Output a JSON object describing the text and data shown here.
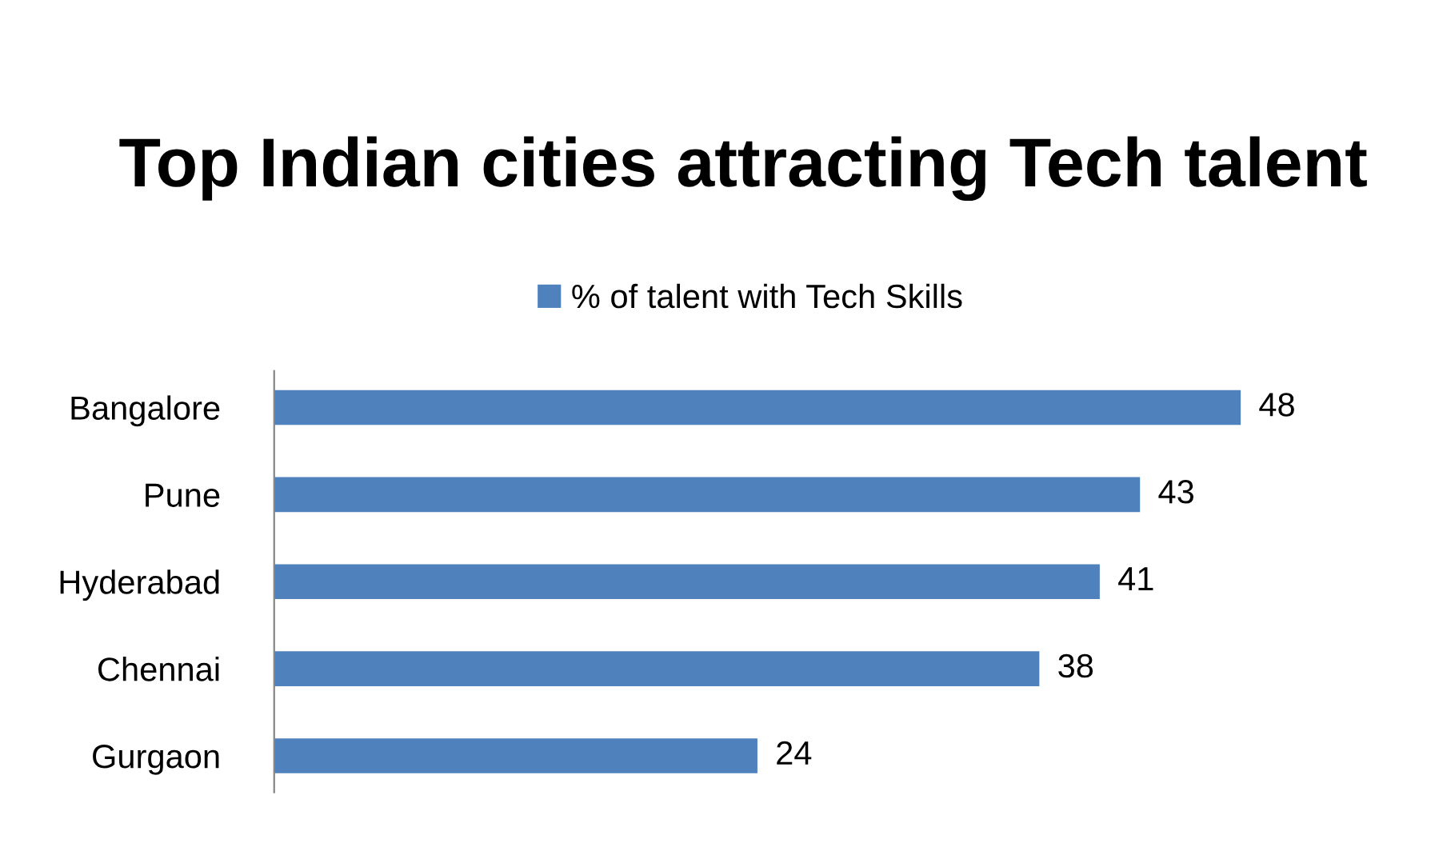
{
  "chart_data": {
    "type": "bar",
    "orientation": "horizontal",
    "title": "Top Indian cities attracting Tech talent",
    "categories": [
      "Bangalore",
      "Pune",
      "Hyderabad",
      "Chennai",
      "Gurgaon"
    ],
    "series": [
      {
        "name": "% of talent with Tech Skills",
        "color": "#4f81bd",
        "values": [
          48,
          43,
          41,
          38,
          24
        ]
      }
    ],
    "data_labels": true,
    "legend": "top",
    "grid": false,
    "tick_labels": "y"
  }
}
